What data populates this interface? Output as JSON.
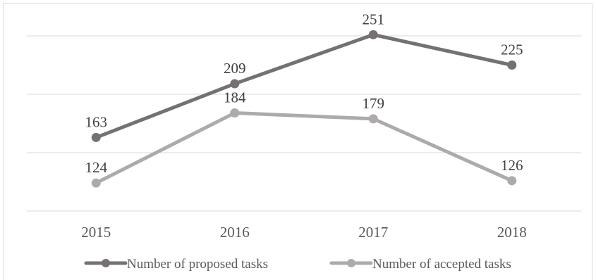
{
  "chart_data": {
    "type": "line",
    "categories": [
      "2015",
      "2016",
      "2017",
      "2018"
    ],
    "series": [
      {
        "name": "Number of proposed tasks",
        "values": [
          163,
          209,
          251,
          225
        ],
        "color": "#757171"
      },
      {
        "name": "Number of accepted tasks",
        "values": [
          124,
          184,
          179,
          126
        ],
        "color": "#AEAAAA"
      }
    ],
    "ylim": [
      100,
      250
    ],
    "grid": true,
    "legend": "bottom",
    "data_labels": true
  }
}
